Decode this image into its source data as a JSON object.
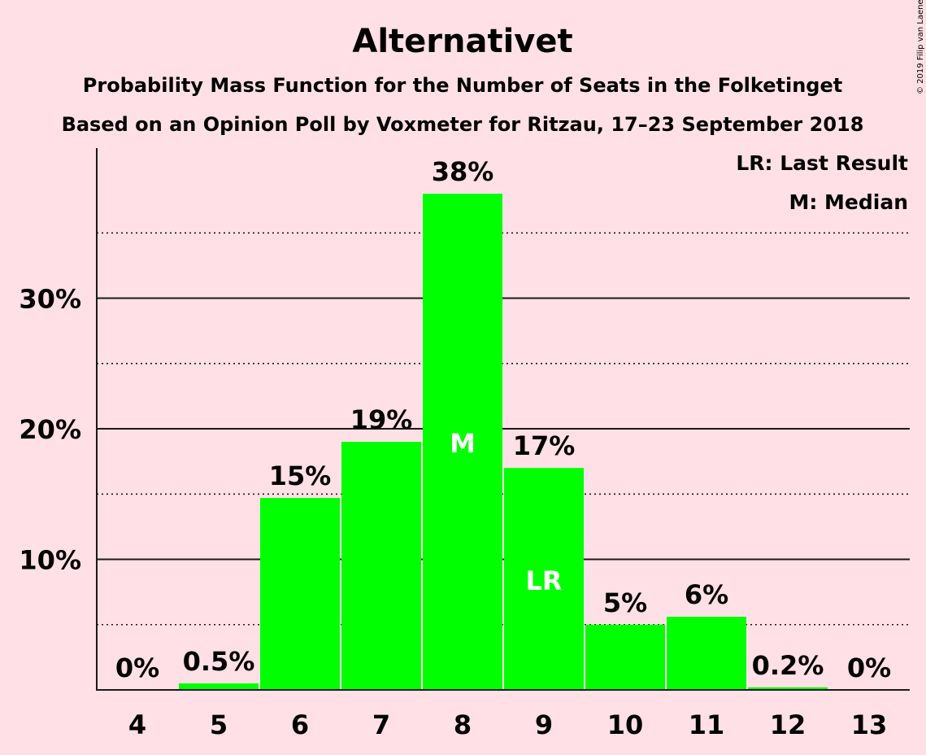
{
  "title": "Alternativet",
  "subtitle1": "Probability Mass Function for the Number of Seats in the Folketinget",
  "subtitle2": "Based on an Opinion Poll by Voxmeter for Ritzau, 17–23 September 2018",
  "copyright": "© 2019 Filip van Laenen",
  "legend": {
    "last_result": "LR: Last Result",
    "median": "M: Median"
  },
  "colors": {
    "background": "#ffe0e6",
    "bar": "#00ff00",
    "text": "#1a1a1a",
    "inlabel": "#ffffff"
  },
  "chart_data": {
    "type": "bar",
    "categories": [
      "4",
      "5",
      "6",
      "7",
      "8",
      "9",
      "10",
      "11",
      "12",
      "13"
    ],
    "values": [
      0,
      0.5,
      14.7,
      19,
      38,
      17,
      5,
      5.6,
      0.2,
      0
    ],
    "value_labels": [
      "0%",
      "0.5%",
      "15%",
      "19%",
      "38%",
      "17%",
      "5%",
      "6%",
      "0.2%",
      "0%"
    ],
    "markers": {
      "8": "M",
      "9": "LR"
    },
    "ylim": [
      0,
      41.5
    ],
    "yticks": [
      10,
      20,
      30
    ],
    "ytick_labels": [
      "10%",
      "20%",
      "30%"
    ],
    "minor_gridlines": [
      5,
      15,
      25,
      35
    ],
    "grid": true,
    "legend_position": "top-right"
  }
}
